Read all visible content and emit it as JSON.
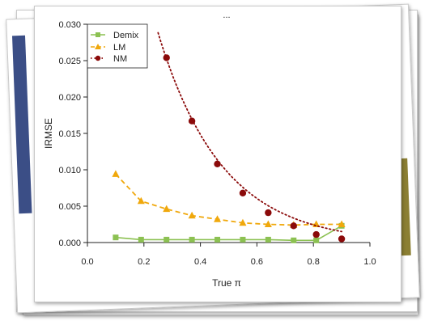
{
  "page": {
    "strip_colors": {
      "navy": "#3b4e86",
      "olive": "#8b7f33"
    },
    "partial_title": "..."
  },
  "chart_data": {
    "type": "line",
    "title": "",
    "xlabel": "True π",
    "ylabel": "IRMSE",
    "xlim": [
      0.0,
      1.0
    ],
    "ylim": [
      0.0,
      0.03
    ],
    "xticks": [
      "0.0",
      "0.2",
      "0.4",
      "0.6",
      "0.8",
      "1.0"
    ],
    "yticks": [
      "0.000",
      "0.005",
      "0.010",
      "0.015",
      "0.020",
      "0.025",
      "0.030"
    ],
    "grid": false,
    "legend_position": "top-left",
    "series": [
      {
        "name": "Demix",
        "color": "#8cc152",
        "marker": "square",
        "line": "solid",
        "x": [
          0.1,
          0.19,
          0.28,
          0.37,
          0.46,
          0.55,
          0.64,
          0.73,
          0.81,
          0.9
        ],
        "y": [
          0.0007,
          0.0004,
          0.0004,
          0.0004,
          0.0004,
          0.0004,
          0.0004,
          0.0003,
          0.0003,
          0.0023
        ]
      },
      {
        "name": "LM",
        "color": "#f0a80c",
        "marker": "triangle",
        "line": "dashed",
        "x": [
          0.1,
          0.19,
          0.28,
          0.37,
          0.46,
          0.55,
          0.64,
          0.73,
          0.81,
          0.9
        ],
        "y": [
          0.0094,
          0.0057,
          0.0046,
          0.0037,
          0.0032,
          0.0027,
          0.0025,
          0.0024,
          0.0025,
          0.0025
        ]
      },
      {
        "name": "NM",
        "color": "#8b0a0a",
        "marker": "circle",
        "line": "dotted",
        "x": [
          0.28,
          0.37,
          0.46,
          0.55,
          0.64,
          0.73,
          0.81,
          0.9
        ],
        "y": [
          0.0254,
          0.0167,
          0.0108,
          0.0068,
          0.0041,
          0.0023,
          0.0011,
          0.0005
        ]
      }
    ]
  }
}
